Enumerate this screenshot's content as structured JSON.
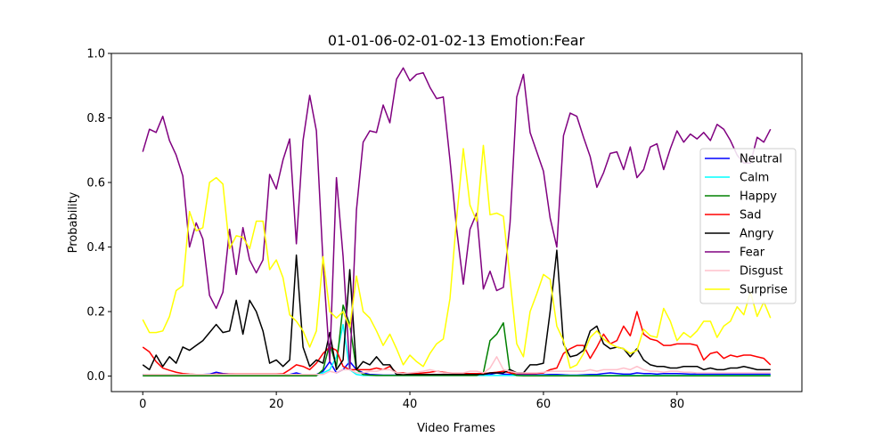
{
  "chart_data": {
    "type": "line",
    "title": "01-01-06-02-01-02-13 Emotion:Fear",
    "xlabel": "Video Frames",
    "ylabel": "Probability",
    "xlim": [
      -4.7,
      98.7
    ],
    "ylim": [
      -0.048,
      1.0
    ],
    "xticks": [
      0,
      20,
      40,
      60,
      80
    ],
    "yticks": [
      0.0,
      0.2,
      0.4,
      0.6,
      0.8,
      1.0
    ],
    "xtick_labels": [
      "0",
      "20",
      "40",
      "60",
      "80"
    ],
    "ytick_labels": [
      "0.0",
      "0.2",
      "0.4",
      "0.6",
      "0.8",
      "1.0"
    ],
    "grid": false,
    "legend_position": "center-right",
    "series": [
      {
        "name": "Neutral",
        "color": "#0000ff",
        "values": [
          0.005,
          0.005,
          0.005,
          0.005,
          0.004,
          0.004,
          0.004,
          0.004,
          0.004,
          0.005,
          0.006,
          0.012,
          0.008,
          0.006,
          0.005,
          0.005,
          0.004,
          0.004,
          0.004,
          0.004,
          0.004,
          0.005,
          0.005,
          0.01,
          0.004,
          0.003,
          0.005,
          0.015,
          0.045,
          0.01,
          0.02,
          0.045,
          0.02,
          0.01,
          0.005,
          0.004,
          0.003,
          0.003,
          0.003,
          0.003,
          0.003,
          0.003,
          0.003,
          0.003,
          0.003,
          0.003,
          0.003,
          0.003,
          0.003,
          0.003,
          0.003,
          0.003,
          0.005,
          0.01,
          0.006,
          0.005,
          0.004,
          0.004,
          0.004,
          0.004,
          0.004,
          0.005,
          0.005,
          0.004,
          0.003,
          0.003,
          0.004,
          0.005,
          0.005,
          0.008,
          0.01,
          0.008,
          0.006,
          0.006,
          0.01,
          0.008,
          0.008,
          0.006,
          0.008,
          0.008,
          0.008,
          0.007,
          0.006,
          0.006,
          0.006,
          0.006,
          0.006,
          0.006,
          0.006,
          0.006,
          0.006,
          0.006,
          0.006,
          0.006,
          0.006
        ]
      },
      {
        "name": "Calm",
        "color": "#00ffff",
        "values": [
          0.002,
          0.002,
          0.002,
          0.002,
          0.002,
          0.002,
          0.002,
          0.002,
          0.002,
          0.002,
          0.002,
          0.002,
          0.002,
          0.002,
          0.002,
          0.002,
          0.002,
          0.002,
          0.002,
          0.002,
          0.002,
          0.002,
          0.002,
          0.002,
          0.002,
          0.002,
          0.002,
          0.01,
          0.02,
          0.06,
          0.16,
          0.02,
          0.005,
          0.002,
          0.002,
          0.002,
          0.002,
          0.002,
          0.002,
          0.002,
          0.002,
          0.002,
          0.002,
          0.002,
          0.002,
          0.002,
          0.002,
          0.002,
          0.002,
          0.002,
          0.002,
          0.002,
          0.002,
          0.002,
          0.002,
          0.002,
          0.002,
          0.002,
          0.002,
          0.002,
          0.002,
          0.002,
          0.002,
          0.002,
          0.002,
          0.002,
          0.002,
          0.002,
          0.002,
          0.002,
          0.002,
          0.002,
          0.002,
          0.002,
          0.002,
          0.002,
          0.002,
          0.002,
          0.002,
          0.002,
          0.002,
          0.002,
          0.002,
          0.002,
          0.002,
          0.002,
          0.002,
          0.002,
          0.002,
          0.002,
          0.002,
          0.002,
          0.002,
          0.002,
          0.002
        ]
      },
      {
        "name": "Happy",
        "color": "#008000",
        "values": [
          0.001,
          0.001,
          0.001,
          0.001,
          0.001,
          0.001,
          0.001,
          0.001,
          0.001,
          0.001,
          0.001,
          0.001,
          0.001,
          0.001,
          0.001,
          0.001,
          0.001,
          0.001,
          0.001,
          0.001,
          0.001,
          0.001,
          0.001,
          0.001,
          0.001,
          0.001,
          0.001,
          0.02,
          0.1,
          0.03,
          0.22,
          0.16,
          0.02,
          0.005,
          0.003,
          0.002,
          0.002,
          0.002,
          0.002,
          0.002,
          0.002,
          0.002,
          0.002,
          0.002,
          0.002,
          0.002,
          0.002,
          0.002,
          0.002,
          0.002,
          0.002,
          0.01,
          0.11,
          0.13,
          0.165,
          0.01,
          0.002,
          0.001,
          0.001,
          0.001,
          0.001,
          0.001,
          0.001,
          0.001,
          0.001,
          0.001,
          0.001,
          0.001,
          0.001,
          0.001,
          0.001,
          0.001,
          0.001,
          0.001,
          0.001,
          0.001,
          0.001,
          0.001,
          0.001,
          0.001,
          0.001,
          0.001,
          0.001,
          0.001,
          0.001,
          0.001,
          0.001,
          0.001,
          0.001,
          0.001,
          0.001,
          0.001,
          0.001,
          0.001,
          0.001
        ]
      },
      {
        "name": "Sad",
        "color": "#ff0000",
        "values": [
          0.09,
          0.075,
          0.045,
          0.025,
          0.018,
          0.012,
          0.008,
          0.006,
          0.005,
          0.005,
          0.005,
          0.006,
          0.006,
          0.006,
          0.006,
          0.006,
          0.006,
          0.006,
          0.006,
          0.006,
          0.006,
          0.007,
          0.02,
          0.035,
          0.03,
          0.02,
          0.04,
          0.07,
          0.09,
          0.08,
          0.03,
          0.02,
          0.02,
          0.02,
          0.02,
          0.025,
          0.02,
          0.03,
          0.01,
          0.01,
          0.008,
          0.008,
          0.01,
          0.012,
          0.015,
          0.012,
          0.01,
          0.008,
          0.008,
          0.008,
          0.008,
          0.008,
          0.01,
          0.012,
          0.015,
          0.01,
          0.008,
          0.008,
          0.008,
          0.008,
          0.01,
          0.02,
          0.025,
          0.07,
          0.085,
          0.095,
          0.095,
          0.055,
          0.09,
          0.13,
          0.1,
          0.11,
          0.155,
          0.125,
          0.2,
          0.13,
          0.115,
          0.11,
          0.095,
          0.095,
          0.1,
          0.1,
          0.1,
          0.095,
          0.05,
          0.07,
          0.075,
          0.055,
          0.065,
          0.06,
          0.065,
          0.065,
          0.06,
          0.055,
          0.035
        ]
      },
      {
        "name": "Angry",
        "color": "#000000",
        "values": [
          0.035,
          0.02,
          0.065,
          0.03,
          0.06,
          0.04,
          0.09,
          0.08,
          0.095,
          0.11,
          0.135,
          0.16,
          0.135,
          0.14,
          0.235,
          0.13,
          0.235,
          0.2,
          0.14,
          0.04,
          0.05,
          0.03,
          0.05,
          0.375,
          0.09,
          0.03,
          0.05,
          0.04,
          0.135,
          0.02,
          0.05,
          0.33,
          0.02,
          0.045,
          0.035,
          0.06,
          0.035,
          0.035,
          0.005,
          0.005,
          0.005,
          0.005,
          0.005,
          0.005,
          0.005,
          0.005,
          0.005,
          0.005,
          0.005,
          0.005,
          0.005,
          0.005,
          0.01,
          0.01,
          0.01,
          0.02,
          0.01,
          0.01,
          0.035,
          0.035,
          0.04,
          0.2,
          0.39,
          0.1,
          0.06,
          0.065,
          0.08,
          0.14,
          0.155,
          0.1,
          0.085,
          0.09,
          0.085,
          0.06,
          0.085,
          0.05,
          0.035,
          0.03,
          0.03,
          0.025,
          0.025,
          0.03,
          0.03,
          0.03,
          0.02,
          0.025,
          0.02,
          0.02,
          0.025,
          0.025,
          0.03,
          0.025,
          0.02,
          0.02,
          0.02
        ]
      },
      {
        "name": "Fear",
        "color": "#800080",
        "values": [
          0.695,
          0.765,
          0.755,
          0.805,
          0.73,
          0.685,
          0.62,
          0.4,
          0.475,
          0.425,
          0.25,
          0.21,
          0.26,
          0.455,
          0.315,
          0.46,
          0.36,
          0.32,
          0.36,
          0.625,
          0.58,
          0.67,
          0.735,
          0.41,
          0.73,
          0.87,
          0.76,
          0.35,
          0.045,
          0.615,
          0.37,
          0.02,
          0.515,
          0.725,
          0.76,
          0.755,
          0.84,
          0.785,
          0.92,
          0.955,
          0.915,
          0.935,
          0.94,
          0.895,
          0.86,
          0.865,
          0.67,
          0.455,
          0.285,
          0.455,
          0.505,
          0.27,
          0.325,
          0.265,
          0.275,
          0.475,
          0.865,
          0.935,
          0.755,
          0.695,
          0.635,
          0.49,
          0.4,
          0.745,
          0.815,
          0.805,
          0.74,
          0.68,
          0.585,
          0.63,
          0.69,
          0.695,
          0.64,
          0.71,
          0.615,
          0.64,
          0.71,
          0.72,
          0.64,
          0.705,
          0.76,
          0.725,
          0.75,
          0.735,
          0.755,
          0.73,
          0.78,
          0.765,
          0.73,
          0.685,
          0.66,
          0.66,
          0.74,
          0.725,
          0.765
        ]
      },
      {
        "name": "Disgust",
        "color": "#ffc0cb",
        "values": [
          0.005,
          0.005,
          0.005,
          0.005,
          0.005,
          0.005,
          0.005,
          0.005,
          0.005,
          0.005,
          0.005,
          0.005,
          0.005,
          0.005,
          0.005,
          0.005,
          0.005,
          0.005,
          0.005,
          0.005,
          0.005,
          0.005,
          0.005,
          0.005,
          0.005,
          0.005,
          0.005,
          0.005,
          0.015,
          0.01,
          0.02,
          0.02,
          0.01,
          0.01,
          0.015,
          0.015,
          0.02,
          0.02,
          0.01,
          0.008,
          0.01,
          0.012,
          0.015,
          0.02,
          0.015,
          0.01,
          0.01,
          0.01,
          0.01,
          0.015,
          0.015,
          0.01,
          0.025,
          0.06,
          0.02,
          0.015,
          0.01,
          0.01,
          0.01,
          0.01,
          0.012,
          0.015,
          0.015,
          0.015,
          0.015,
          0.015,
          0.015,
          0.02,
          0.015,
          0.02,
          0.02,
          0.02,
          0.025,
          0.02,
          0.03,
          0.02,
          0.015,
          0.015,
          0.012,
          0.015,
          0.015,
          0.012,
          0.012,
          0.01,
          0.01,
          0.01,
          0.01,
          0.01,
          0.01,
          0.01,
          0.01,
          0.01,
          0.01,
          0.01,
          0.01
        ]
      },
      {
        "name": "Surprise",
        "color": "#ffff00",
        "values": [
          0.175,
          0.135,
          0.135,
          0.14,
          0.185,
          0.265,
          0.28,
          0.51,
          0.45,
          0.46,
          0.6,
          0.615,
          0.595,
          0.395,
          0.435,
          0.43,
          0.395,
          0.48,
          0.48,
          0.33,
          0.36,
          0.305,
          0.19,
          0.17,
          0.14,
          0.09,
          0.14,
          0.37,
          0.2,
          0.18,
          0.2,
          0.15,
          0.31,
          0.2,
          0.18,
          0.14,
          0.095,
          0.13,
          0.085,
          0.035,
          0.065,
          0.045,
          0.03,
          0.07,
          0.1,
          0.115,
          0.24,
          0.49,
          0.705,
          0.53,
          0.48,
          0.715,
          0.5,
          0.505,
          0.495,
          0.3,
          0.1,
          0.06,
          0.2,
          0.255,
          0.315,
          0.3,
          0.155,
          0.11,
          0.025,
          0.035,
          0.07,
          0.12,
          0.14,
          0.115,
          0.1,
          0.09,
          0.085,
          0.07,
          0.08,
          0.145,
          0.125,
          0.12,
          0.21,
          0.17,
          0.11,
          0.135,
          0.12,
          0.14,
          0.17,
          0.17,
          0.12,
          0.155,
          0.17,
          0.215,
          0.19,
          0.26,
          0.185,
          0.23,
          0.18
        ]
      }
    ]
  }
}
